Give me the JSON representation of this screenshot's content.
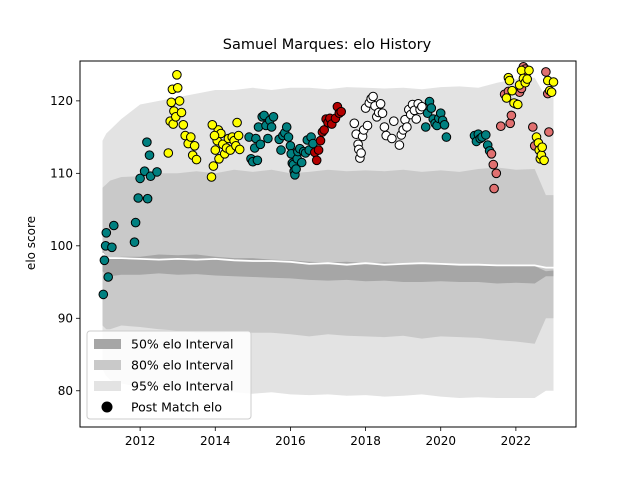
{
  "chart_data": {
    "type": "scatter",
    "title": "Samuel Marques: elo History",
    "xlabel": "",
    "ylabel": "elo score",
    "xlim": [
      2010.4,
      2023.6
    ],
    "ylim": [
      75,
      125.5
    ],
    "x_ticks": [
      2012,
      2014,
      2016,
      2018,
      2020,
      2022
    ],
    "y_ticks": [
      80,
      90,
      100,
      110,
      120
    ],
    "grid": false,
    "legend": {
      "placement": "lower-left",
      "entries": [
        {
          "label": "50% elo Interval",
          "color": "#a6a6a6"
        },
        {
          "label": "80% elo Interval",
          "color": "#c9c9c9"
        },
        {
          "label": "95% elo Interval",
          "color": "#e3e3e3"
        },
        {
          "label": "Post Match elo",
          "color": "#000000"
        }
      ]
    },
    "bands": {
      "x": [
        2011.0,
        2011.1,
        2011.2,
        2011.5,
        2012.0,
        2012.5,
        2013.0,
        2013.5,
        2014.0,
        2014.5,
        2015.0,
        2015.5,
        2016.0,
        2016.5,
        2017.0,
        2017.5,
        2018.0,
        2018.5,
        2019.0,
        2019.5,
        2020.0,
        2020.5,
        2021.0,
        2021.5,
        2022.0,
        2022.5,
        2022.8,
        2023.0
      ],
      "median": [
        99.0,
        98.4,
        98.3,
        98.3,
        98.2,
        98.1,
        98.2,
        98.1,
        98.2,
        98.0,
        97.9,
        97.9,
        97.8,
        97.5,
        97.6,
        97.4,
        97.6,
        97.4,
        97.5,
        97.6,
        97.5,
        97.4,
        97.4,
        97.3,
        97.3,
        97.3,
        97.0,
        97.0
      ],
      "p50": [
        [
          96.5,
          99.5
        ],
        [
          96.0,
          98.5
        ],
        [
          95.8,
          98.3
        ],
        [
          96.0,
          98.5
        ],
        [
          96.0,
          98.5
        ],
        [
          96.2,
          98.8
        ],
        [
          96.0,
          98.7
        ],
        [
          96.1,
          98.8
        ],
        [
          95.9,
          98.5
        ],
        [
          95.8,
          98.3
        ],
        [
          95.7,
          98.3
        ],
        [
          95.6,
          98.1
        ],
        [
          95.5,
          98.0
        ],
        [
          95.3,
          97.8
        ],
        [
          95.2,
          97.7
        ],
        [
          95.3,
          97.8
        ],
        [
          95.1,
          97.6
        ],
        [
          95.2,
          97.7
        ],
        [
          95.0,
          97.6
        ],
        [
          95.0,
          97.5
        ],
        [
          95.1,
          97.5
        ],
        [
          95.0,
          97.4
        ],
        [
          95.0,
          97.4
        ],
        [
          94.8,
          97.3
        ],
        [
          94.9,
          97.2
        ],
        [
          94.8,
          97.2
        ],
        [
          95.8,
          96.5
        ],
        [
          95.8,
          96.6
        ]
      ],
      "p80": [
        [
          89.0,
          108.0
        ],
        [
          88.5,
          108.5
        ],
        [
          88.5,
          109.0
        ],
        [
          89.0,
          109.5
        ],
        [
          88.8,
          109.6
        ],
        [
          88.5,
          110.0
        ],
        [
          88.3,
          110.0
        ],
        [
          88.0,
          110.3
        ],
        [
          88.0,
          110.0
        ],
        [
          88.1,
          110.5
        ],
        [
          88.0,
          110.2
        ],
        [
          88.0,
          110.5
        ],
        [
          87.8,
          110.0
        ],
        [
          87.5,
          110.2
        ],
        [
          87.8,
          110.5
        ],
        [
          87.6,
          110.3
        ],
        [
          87.5,
          110.4
        ],
        [
          87.4,
          110.3
        ],
        [
          87.6,
          110.5
        ],
        [
          87.2,
          110.2
        ],
        [
          87.5,
          110.4
        ],
        [
          87.4,
          110.2
        ],
        [
          87.3,
          110.6
        ],
        [
          87.0,
          110.8
        ],
        [
          86.8,
          110.5
        ],
        [
          86.5,
          110.6
        ],
        [
          90.0,
          107.0
        ],
        [
          90.0,
          107.0
        ]
      ],
      "p95": [
        [
          83.0,
          114.5
        ],
        [
          82.0,
          115.5
        ],
        [
          81.5,
          116.0
        ],
        [
          81.0,
          117.5
        ],
        [
          80.5,
          119.5
        ],
        [
          80.5,
          120.0
        ],
        [
          80.2,
          120.5
        ],
        [
          80.0,
          121.0
        ],
        [
          80.0,
          121.5
        ],
        [
          79.8,
          121.5
        ],
        [
          79.6,
          121.8
        ],
        [
          79.8,
          121.5
        ],
        [
          79.5,
          121.8
        ],
        [
          79.4,
          121.8
        ],
        [
          79.5,
          121.6
        ],
        [
          79.3,
          121.9
        ],
        [
          79.4,
          121.8
        ],
        [
          79.2,
          121.7
        ],
        [
          79.3,
          121.8
        ],
        [
          79.5,
          121.6
        ],
        [
          79.2,
          121.9
        ],
        [
          79.0,
          122.0
        ],
        [
          79.1,
          121.8
        ],
        [
          79.0,
          122.5
        ],
        [
          79.0,
          123.0
        ],
        [
          79.0,
          123.2
        ],
        [
          80.0,
          120.5
        ],
        [
          80.0,
          120.5
        ]
      ]
    },
    "series": [
      {
        "color": "#008080",
        "points": [
          [
            2011.02,
            93.3
          ],
          [
            2011.05,
            98.0
          ],
          [
            2011.08,
            100.0
          ],
          [
            2011.1,
            101.8
          ],
          [
            2011.15,
            95.7
          ],
          [
            2011.25,
            99.8
          ],
          [
            2011.3,
            102.8
          ],
          [
            2011.85,
            100.5
          ],
          [
            2011.88,
            103.2
          ],
          [
            2011.95,
            106.6
          ],
          [
            2012.0,
            109.3
          ],
          [
            2012.12,
            110.3
          ],
          [
            2012.18,
            114.3
          ],
          [
            2012.2,
            106.5
          ],
          [
            2012.25,
            112.5
          ],
          [
            2012.28,
            109.6
          ],
          [
            2012.45,
            110.2
          ]
        ]
      },
      {
        "color": "#ffff00",
        "points": [
          [
            2012.75,
            112.8
          ],
          [
            2012.8,
            117.2
          ],
          [
            2012.83,
            119.8
          ],
          [
            2012.86,
            121.6
          ],
          [
            2012.88,
            116.8
          ],
          [
            2012.9,
            118.6
          ],
          [
            2012.95,
            117.8
          ],
          [
            2012.98,
            123.6
          ],
          [
            2013.0,
            121.8
          ],
          [
            2013.05,
            120.0
          ],
          [
            2013.1,
            118.4
          ],
          [
            2013.15,
            116.7
          ],
          [
            2013.2,
            115.2
          ],
          [
            2013.28,
            114.1
          ],
          [
            2013.35,
            115.0
          ],
          [
            2013.4,
            112.5
          ],
          [
            2013.45,
            113.8
          ],
          [
            2013.5,
            111.9
          ],
          [
            2013.9,
            109.5
          ],
          [
            2013.95,
            111.0
          ],
          [
            2014.0,
            113.2
          ],
          [
            2014.05,
            114.5
          ],
          [
            2014.08,
            116.0
          ],
          [
            2014.1,
            112.0
          ],
          [
            2014.15,
            115.5
          ],
          [
            2014.2,
            114.0
          ],
          [
            2014.25,
            112.7
          ],
          [
            2014.3,
            113.5
          ],
          [
            2014.35,
            114.8
          ],
          [
            2014.4,
            113.2
          ],
          [
            2014.45,
            115.0
          ],
          [
            2014.5,
            114.5
          ],
          [
            2014.55,
            113.8
          ],
          [
            2014.58,
            117.0
          ],
          [
            2014.62,
            115.2
          ],
          [
            2014.65,
            113.3
          ],
          [
            2013.92,
            116.7
          ],
          [
            2013.98,
            115.2
          ]
        ]
      },
      {
        "color": "#008080",
        "points": [
          [
            2014.9,
            115.0
          ],
          [
            2014.95,
            112.0
          ],
          [
            2015.0,
            111.6
          ],
          [
            2015.05,
            113.5
          ],
          [
            2015.08,
            114.8
          ],
          [
            2015.12,
            111.8
          ],
          [
            2015.15,
            116.4
          ],
          [
            2015.2,
            114.0
          ],
          [
            2015.25,
            117.8
          ],
          [
            2015.3,
            118.0
          ],
          [
            2015.35,
            116.6
          ],
          [
            2015.4,
            114.8
          ],
          [
            2015.45,
            117.3
          ],
          [
            2015.5,
            116.4
          ],
          [
            2015.55,
            117.8
          ],
          [
            2015.7,
            114.7
          ],
          [
            2015.75,
            113.2
          ],
          [
            2015.8,
            115.2
          ],
          [
            2015.85,
            115.6
          ],
          [
            2015.9,
            116.4
          ],
          [
            2015.95,
            115.0
          ],
          [
            2016.0,
            113.8
          ],
          [
            2016.02,
            112.7
          ],
          [
            2016.05,
            111.4
          ],
          [
            2016.08,
            111.2
          ],
          [
            2016.1,
            110.3
          ],
          [
            2016.12,
            109.8
          ],
          [
            2016.15,
            110.6
          ],
          [
            2016.18,
            112.0
          ],
          [
            2016.2,
            113.0
          ],
          [
            2016.25,
            113.4
          ],
          [
            2016.3,
            111.5
          ],
          [
            2016.35,
            113.0
          ],
          [
            2016.4,
            112.8
          ],
          [
            2016.45,
            114.6
          ],
          [
            2016.5,
            113.2
          ],
          [
            2016.55,
            115.0
          ],
          [
            2016.6,
            114.1
          ]
        ]
      },
      {
        "color": "#b30000",
        "points": [
          [
            2016.65,
            112.9
          ],
          [
            2016.7,
            111.8
          ],
          [
            2016.75,
            113.2
          ],
          [
            2016.8,
            114.5
          ],
          [
            2016.85,
            115.7
          ],
          [
            2016.9,
            116.0
          ],
          [
            2016.95,
            117.5
          ],
          [
            2017.0,
            117.0
          ],
          [
            2017.05,
            117.6
          ],
          [
            2017.1,
            116.8
          ],
          [
            2017.2,
            117.6
          ],
          [
            2017.25,
            119.2
          ],
          [
            2017.3,
            118.3
          ],
          [
            2017.35,
            118.5
          ]
        ]
      },
      {
        "color": "#ffffff",
        "points": [
          [
            2017.7,
            116.9
          ],
          [
            2017.75,
            115.4
          ],
          [
            2017.8,
            114.0
          ],
          [
            2017.82,
            113.3
          ],
          [
            2017.85,
            112.1
          ],
          [
            2017.88,
            112.8
          ],
          [
            2017.92,
            115.1
          ],
          [
            2017.95,
            116.0
          ],
          [
            2018.0,
            119.0
          ],
          [
            2018.05,
            116.6
          ],
          [
            2018.1,
            119.7
          ],
          [
            2018.15,
            120.3
          ],
          [
            2018.2,
            120.6
          ],
          [
            2018.25,
            119.3
          ],
          [
            2018.3,
            117.8
          ],
          [
            2018.35,
            118.4
          ],
          [
            2018.4,
            119.6
          ],
          [
            2018.45,
            118.3
          ],
          [
            2018.5,
            116.4
          ],
          [
            2018.55,
            115.2
          ],
          [
            2018.7,
            114.8
          ],
          [
            2018.75,
            117.2
          ],
          [
            2018.9,
            113.9
          ],
          [
            2018.95,
            115.3
          ],
          [
            2019.0,
            116.0
          ],
          [
            2019.05,
            117.4
          ],
          [
            2019.1,
            116.4
          ],
          [
            2019.15,
            118.8
          ],
          [
            2019.2,
            118.1
          ],
          [
            2019.25,
            119.5
          ],
          [
            2019.3,
            118.7
          ],
          [
            2019.35,
            117.5
          ],
          [
            2019.4,
            119.6
          ],
          [
            2019.45,
            118.8
          ],
          [
            2019.5,
            119.2
          ]
        ]
      },
      {
        "color": "#008080",
        "points": [
          [
            2019.6,
            116.4
          ],
          [
            2019.65,
            118.3
          ],
          [
            2019.7,
            119.9
          ],
          [
            2019.75,
            119.0
          ],
          [
            2019.8,
            117.5
          ],
          [
            2019.85,
            116.9
          ],
          [
            2019.9,
            116.6
          ],
          [
            2019.95,
            117.6
          ],
          [
            2020.0,
            118.3
          ],
          [
            2020.05,
            117.3
          ],
          [
            2020.1,
            116.7
          ],
          [
            2020.15,
            115.0
          ],
          [
            2020.9,
            115.2
          ],
          [
            2020.95,
            114.4
          ],
          [
            2021.0,
            115.4
          ],
          [
            2021.05,
            114.8
          ],
          [
            2021.1,
            115.0
          ],
          [
            2021.2,
            115.3
          ],
          [
            2021.25,
            113.9
          ],
          [
            2021.3,
            113.1
          ]
        ]
      },
      {
        "color": "#e07070",
        "points": [
          [
            2021.35,
            112.7
          ],
          [
            2021.4,
            111.2
          ],
          [
            2021.42,
            107.9
          ],
          [
            2021.48,
            110.0
          ],
          [
            2021.6,
            116.5
          ],
          [
            2021.7,
            120.9
          ],
          [
            2021.8,
            121.3
          ],
          [
            2021.85,
            116.9
          ],
          [
            2021.88,
            118.0
          ],
          [
            2022.0,
            119.6
          ],
          [
            2022.1,
            121.2
          ],
          [
            2022.15,
            121.7
          ],
          [
            2022.2,
            124.7
          ],
          [
            2022.25,
            124.4
          ],
          [
            2022.3,
            124.0
          ],
          [
            2022.45,
            116.4
          ],
          [
            2022.5,
            113.8
          ],
          [
            2022.8,
            124.0
          ],
          [
            2022.85,
            121.0
          ],
          [
            2022.88,
            115.7
          ]
        ]
      },
      {
        "color": "#ffff00",
        "points": [
          [
            2021.75,
            120.4
          ],
          [
            2021.8,
            123.2
          ],
          [
            2021.83,
            122.8
          ],
          [
            2021.9,
            121.4
          ],
          [
            2021.95,
            119.7
          ],
          [
            2022.05,
            119.5
          ],
          [
            2022.1,
            122.2
          ],
          [
            2022.15,
            124.2
          ],
          [
            2022.2,
            123.1
          ],
          [
            2022.25,
            122.5
          ],
          [
            2022.3,
            123.0
          ],
          [
            2022.35,
            124.2
          ],
          [
            2022.55,
            115.0
          ],
          [
            2022.6,
            114.2
          ],
          [
            2022.62,
            113.2
          ],
          [
            2022.65,
            112.0
          ],
          [
            2022.68,
            112.5
          ],
          [
            2022.7,
            113.6
          ],
          [
            2022.75,
            111.8
          ],
          [
            2022.85,
            122.8
          ],
          [
            2022.9,
            121.4
          ],
          [
            2022.95,
            121.2
          ],
          [
            2023.0,
            122.6
          ]
        ]
      }
    ]
  }
}
